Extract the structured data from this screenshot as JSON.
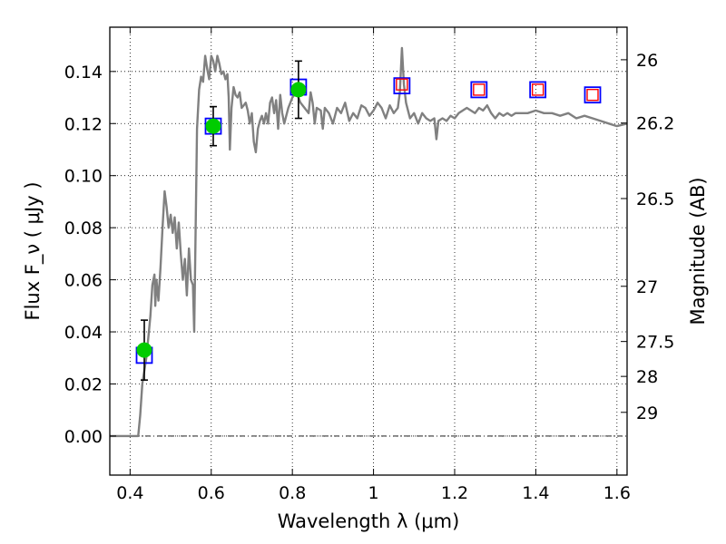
{
  "chart_data": {
    "type": "scatter",
    "xlabel": "Wavelength  λ (μm)",
    "ylabel": "Flux  F_ν  ( μJy )",
    "y2label": "Magnitude (AB)",
    "xlim": [
      0.35,
      1.625
    ],
    "ylim": [
      -0.015,
      0.157
    ],
    "grid": true,
    "x_ticks": [
      0.4,
      0.6,
      0.8,
      1.0,
      1.2,
      1.4,
      1.6
    ],
    "x_tick_labels": [
      "0.4",
      "0.6",
      "0.8",
      "1",
      "1.2",
      "1.4",
      "1.6"
    ],
    "y_ticks": [
      0.0,
      0.02,
      0.04,
      0.06,
      0.08,
      0.1,
      0.12,
      0.14
    ],
    "y_tick_labels": [
      "0.00",
      "0.02",
      "0.04",
      "0.06",
      "0.08",
      "0.10",
      "0.12",
      "0.14"
    ],
    "y2_ticks": [
      {
        "label": "26",
        "flux": 0.1445
      },
      {
        "label": "26.2",
        "flux": 0.1202
      },
      {
        "label": "26.5",
        "flux": 0.0912
      },
      {
        "label": "27",
        "flux": 0.0575
      },
      {
        "label": "27.5",
        "flux": 0.0363
      },
      {
        "label": "28",
        "flux": 0.0229
      },
      {
        "label": "29",
        "flux": 0.0091
      }
    ],
    "zero_line": 0.0,
    "model_spectrum": {
      "color": "#808080",
      "points": [
        [
          0.35,
          0.0
        ],
        [
          0.42,
          0.0
        ],
        [
          0.425,
          0.008
        ],
        [
          0.43,
          0.02
        ],
        [
          0.435,
          0.025
        ],
        [
          0.44,
          0.03
        ],
        [
          0.445,
          0.038
        ],
        [
          0.45,
          0.046
        ],
        [
          0.455,
          0.058
        ],
        [
          0.46,
          0.062
        ],
        [
          0.462,
          0.05
        ],
        [
          0.465,
          0.06
        ],
        [
          0.47,
          0.052
        ],
        [
          0.475,
          0.065
        ],
        [
          0.48,
          0.08
        ],
        [
          0.485,
          0.094
        ],
        [
          0.49,
          0.088
        ],
        [
          0.495,
          0.08
        ],
        [
          0.5,
          0.085
        ],
        [
          0.505,
          0.078
        ],
        [
          0.51,
          0.084
        ],
        [
          0.515,
          0.072
        ],
        [
          0.52,
          0.082
        ],
        [
          0.525,
          0.07
        ],
        [
          0.53,
          0.06
        ],
        [
          0.535,
          0.068
        ],
        [
          0.54,
          0.054
        ],
        [
          0.545,
          0.072
        ],
        [
          0.55,
          0.06
        ],
        [
          0.555,
          0.058
        ],
        [
          0.558,
          0.04
        ],
        [
          0.562,
          0.085
        ],
        [
          0.565,
          0.118
        ],
        [
          0.57,
          0.133
        ],
        [
          0.575,
          0.138
        ],
        [
          0.58,
          0.136
        ],
        [
          0.585,
          0.146
        ],
        [
          0.59,
          0.141
        ],
        [
          0.595,
          0.137
        ],
        [
          0.6,
          0.146
        ],
        [
          0.605,
          0.144
        ],
        [
          0.61,
          0.14
        ],
        [
          0.615,
          0.146
        ],
        [
          0.62,
          0.143
        ],
        [
          0.625,
          0.139
        ],
        [
          0.63,
          0.14
        ],
        [
          0.635,
          0.137
        ],
        [
          0.64,
          0.139
        ],
        [
          0.643,
          0.13
        ],
        [
          0.646,
          0.11
        ],
        [
          0.65,
          0.126
        ],
        [
          0.655,
          0.134
        ],
        [
          0.66,
          0.131
        ],
        [
          0.665,
          0.13
        ],
        [
          0.67,
          0.132
        ],
        [
          0.675,
          0.126
        ],
        [
          0.68,
          0.127
        ],
        [
          0.685,
          0.128
        ],
        [
          0.69,
          0.125
        ],
        [
          0.695,
          0.12
        ],
        [
          0.7,
          0.124
        ],
        [
          0.705,
          0.113
        ],
        [
          0.71,
          0.109
        ],
        [
          0.715,
          0.118
        ],
        [
          0.72,
          0.121
        ],
        [
          0.725,
          0.123
        ],
        [
          0.73,
          0.12
        ],
        [
          0.735,
          0.124
        ],
        [
          0.74,
          0.12
        ],
        [
          0.745,
          0.128
        ],
        [
          0.75,
          0.13
        ],
        [
          0.755,
          0.124
        ],
        [
          0.76,
          0.129
        ],
        [
          0.765,
          0.118
        ],
        [
          0.77,
          0.131
        ],
        [
          0.775,
          0.124
        ],
        [
          0.78,
          0.12
        ],
        [
          0.79,
          0.126
        ],
        [
          0.8,
          0.13
        ],
        [
          0.81,
          0.132
        ],
        [
          0.82,
          0.128
        ],
        [
          0.83,
          0.126
        ],
        [
          0.84,
          0.124
        ],
        [
          0.845,
          0.132
        ],
        [
          0.85,
          0.128
        ],
        [
          0.855,
          0.12
        ],
        [
          0.86,
          0.126
        ],
        [
          0.87,
          0.125
        ],
        [
          0.875,
          0.118
        ],
        [
          0.88,
          0.126
        ],
        [
          0.89,
          0.124
        ],
        [
          0.9,
          0.12
        ],
        [
          0.91,
          0.126
        ],
        [
          0.92,
          0.124
        ],
        [
          0.93,
          0.128
        ],
        [
          0.94,
          0.121
        ],
        [
          0.95,
          0.124
        ],
        [
          0.96,
          0.122
        ],
        [
          0.97,
          0.127
        ],
        [
          0.98,
          0.126
        ],
        [
          0.99,
          0.123
        ],
        [
          1.0,
          0.125
        ],
        [
          1.01,
          0.128
        ],
        [
          1.02,
          0.126
        ],
        [
          1.03,
          0.122
        ],
        [
          1.04,
          0.127
        ],
        [
          1.05,
          0.124
        ],
        [
          1.06,
          0.126
        ],
        [
          1.065,
          0.132
        ],
        [
          1.07,
          0.149
        ],
        [
          1.075,
          0.135
        ],
        [
          1.08,
          0.128
        ],
        [
          1.09,
          0.122
        ],
        [
          1.1,
          0.124
        ],
        [
          1.11,
          0.12
        ],
        [
          1.12,
          0.124
        ],
        [
          1.13,
          0.122
        ],
        [
          1.14,
          0.121
        ],
        [
          1.15,
          0.122
        ],
        [
          1.155,
          0.114
        ],
        [
          1.16,
          0.121
        ],
        [
          1.17,
          0.122
        ],
        [
          1.18,
          0.121
        ],
        [
          1.19,
          0.123
        ],
        [
          1.2,
          0.122
        ],
        [
          1.21,
          0.124
        ],
        [
          1.22,
          0.125
        ],
        [
          1.23,
          0.126
        ],
        [
          1.24,
          0.125
        ],
        [
          1.25,
          0.124
        ],
        [
          1.26,
          0.126
        ],
        [
          1.27,
          0.125
        ],
        [
          1.28,
          0.127
        ],
        [
          1.29,
          0.124
        ],
        [
          1.3,
          0.122
        ],
        [
          1.31,
          0.124
        ],
        [
          1.32,
          0.123
        ],
        [
          1.33,
          0.124
        ],
        [
          1.34,
          0.123
        ],
        [
          1.35,
          0.124
        ],
        [
          1.36,
          0.124
        ],
        [
          1.38,
          0.124
        ],
        [
          1.4,
          0.125
        ],
        [
          1.42,
          0.124
        ],
        [
          1.44,
          0.124
        ],
        [
          1.46,
          0.123
        ],
        [
          1.48,
          0.124
        ],
        [
          1.5,
          0.122
        ],
        [
          1.52,
          0.123
        ],
        [
          1.54,
          0.122
        ],
        [
          1.56,
          0.121
        ],
        [
          1.58,
          0.12
        ],
        [
          1.6,
          0.119
        ],
        [
          1.625,
          0.12
        ]
      ]
    },
    "series": [
      {
        "marker": "filled-circle",
        "color": "#00cc00",
        "points": [
          {
            "x": 0.435,
            "y": 0.033,
            "yerr": 0.0115
          },
          {
            "x": 0.605,
            "y": 0.119,
            "yerr": 0.0075
          },
          {
            "x": 0.815,
            "y": 0.133,
            "yerr": 0.011
          }
        ]
      },
      {
        "marker": "open-square",
        "color": "#0000ff",
        "points": [
          {
            "x": 0.435,
            "y": 0.031
          },
          {
            "x": 0.605,
            "y": 0.119
          },
          {
            "x": 0.815,
            "y": 0.134
          },
          {
            "x": 1.07,
            "y": 0.1345
          },
          {
            "x": 1.26,
            "y": 0.133
          },
          {
            "x": 1.405,
            "y": 0.133
          },
          {
            "x": 1.54,
            "y": 0.131
          }
        ]
      },
      {
        "marker": "open-square-small",
        "color": "#ff0000",
        "points": [
          {
            "x": 1.07,
            "y": 0.135
          },
          {
            "x": 1.26,
            "y": 0.133
          },
          {
            "x": 1.405,
            "y": 0.133
          },
          {
            "x": 1.54,
            "y": 0.131
          }
        ]
      }
    ]
  }
}
